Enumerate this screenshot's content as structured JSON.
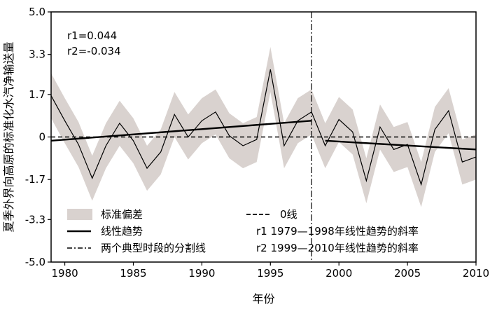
{
  "chart_data": {
    "type": "line",
    "title": "",
    "xlabel": "年份",
    "ylabel": "夏季外界向高原的标准化水汽净输送量",
    "xlim": [
      1979,
      2010
    ],
    "ylim": [
      -5.0,
      5.0
    ],
    "xticks": [
      1980,
      1985,
      1990,
      1995,
      2000,
      2005,
      2010
    ],
    "yticks": [
      5.0,
      3.3,
      1.7,
      0,
      -1.7,
      -3.3,
      -5.0
    ],
    "ytick_labels": [
      "5.0",
      "3.3",
      "1.7",
      "0",
      "-1.7",
      "-3.3",
      "-5.0"
    ],
    "grid": false,
    "divider_year": 1998,
    "x": [
      1979,
      1980,
      1981,
      1982,
      1983,
      1984,
      1985,
      1986,
      1987,
      1988,
      1989,
      1990,
      1991,
      1992,
      1993,
      1994,
      1995,
      1996,
      1997,
      1998,
      1999,
      2000,
      2001,
      2002,
      2003,
      2004,
      2005,
      2006,
      2007,
      2008,
      2009,
      2010
    ],
    "series": [
      {
        "values": [
          1.65,
          0.65,
          -0.3,
          -1.65,
          -0.35,
          0.55,
          -0.15,
          -1.25,
          -0.6,
          0.9,
          0.0,
          0.65,
          1.0,
          0.05,
          -0.35,
          -0.1,
          2.7,
          -0.35,
          0.65,
          1.0,
          -0.35,
          0.7,
          0.2,
          -1.75,
          0.4,
          -0.5,
          -0.3,
          -1.9,
          0.3,
          1.05,
          -1.0,
          -0.8
        ],
        "spread": 0.9
      }
    ],
    "trends": [
      {
        "x": [
          1979,
          1998
        ],
        "y": [
          -0.15,
          0.65
        ]
      },
      {
        "x": [
          1999,
          2010
        ],
        "y": [
          -0.15,
          -0.5
        ]
      }
    ],
    "annotations": {
      "r1": "r1=0.044",
      "r2": "r2=-0.034"
    },
    "legend": {
      "placement": "bottom",
      "items": [
        {
          "key": "band",
          "label": "标准偏差"
        },
        {
          "key": "zero",
          "label": "0线"
        },
        {
          "key": "trend",
          "label": "线性趋势"
        },
        {
          "key": "r1",
          "label": "r1  1979—1998年线性趋势的斜率"
        },
        {
          "key": "divider",
          "label": "两个典型时段的分割线"
        },
        {
          "key": "r2",
          "label": "r2  1999—2010年线性趋势的斜率"
        }
      ]
    }
  }
}
